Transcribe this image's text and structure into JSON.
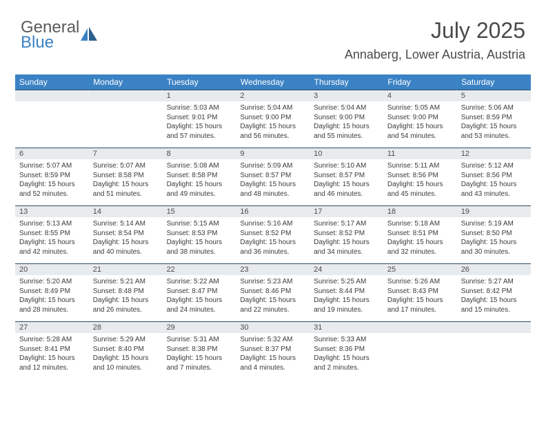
{
  "logo": {
    "part1": "General",
    "part2": "Blue"
  },
  "header": {
    "monthTitle": "July 2025",
    "location": "Annaberg, Lower Austria, Austria"
  },
  "dayNames": [
    "Sunday",
    "Monday",
    "Tuesday",
    "Wednesday",
    "Thursday",
    "Friday",
    "Saturday"
  ],
  "colors": {
    "headerBg": "#3b82c4",
    "headerText": "#ffffff",
    "dayNumBg": "#e8ebed",
    "rowBorder": "#2d4a63",
    "bodyText": "#3a3a3a",
    "titleText": "#4a4a4a"
  },
  "weeks": [
    {
      "nums": [
        "",
        "",
        "1",
        "2",
        "3",
        "4",
        "5"
      ],
      "cells": [
        null,
        null,
        {
          "sr": "Sunrise: 5:03 AM",
          "ss": "Sunset: 9:01 PM",
          "dl1": "Daylight: 15 hours",
          "dl2": "and 57 minutes."
        },
        {
          "sr": "Sunrise: 5:04 AM",
          "ss": "Sunset: 9:00 PM",
          "dl1": "Daylight: 15 hours",
          "dl2": "and 56 minutes."
        },
        {
          "sr": "Sunrise: 5:04 AM",
          "ss": "Sunset: 9:00 PM",
          "dl1": "Daylight: 15 hours",
          "dl2": "and 55 minutes."
        },
        {
          "sr": "Sunrise: 5:05 AM",
          "ss": "Sunset: 9:00 PM",
          "dl1": "Daylight: 15 hours",
          "dl2": "and 54 minutes."
        },
        {
          "sr": "Sunrise: 5:06 AM",
          "ss": "Sunset: 8:59 PM",
          "dl1": "Daylight: 15 hours",
          "dl2": "and 53 minutes."
        }
      ]
    },
    {
      "nums": [
        "6",
        "7",
        "8",
        "9",
        "10",
        "11",
        "12"
      ],
      "cells": [
        {
          "sr": "Sunrise: 5:07 AM",
          "ss": "Sunset: 8:59 PM",
          "dl1": "Daylight: 15 hours",
          "dl2": "and 52 minutes."
        },
        {
          "sr": "Sunrise: 5:07 AM",
          "ss": "Sunset: 8:58 PM",
          "dl1": "Daylight: 15 hours",
          "dl2": "and 51 minutes."
        },
        {
          "sr": "Sunrise: 5:08 AM",
          "ss": "Sunset: 8:58 PM",
          "dl1": "Daylight: 15 hours",
          "dl2": "and 49 minutes."
        },
        {
          "sr": "Sunrise: 5:09 AM",
          "ss": "Sunset: 8:57 PM",
          "dl1": "Daylight: 15 hours",
          "dl2": "and 48 minutes."
        },
        {
          "sr": "Sunrise: 5:10 AM",
          "ss": "Sunset: 8:57 PM",
          "dl1": "Daylight: 15 hours",
          "dl2": "and 46 minutes."
        },
        {
          "sr": "Sunrise: 5:11 AM",
          "ss": "Sunset: 8:56 PM",
          "dl1": "Daylight: 15 hours",
          "dl2": "and 45 minutes."
        },
        {
          "sr": "Sunrise: 5:12 AM",
          "ss": "Sunset: 8:56 PM",
          "dl1": "Daylight: 15 hours",
          "dl2": "and 43 minutes."
        }
      ]
    },
    {
      "nums": [
        "13",
        "14",
        "15",
        "16",
        "17",
        "18",
        "19"
      ],
      "cells": [
        {
          "sr": "Sunrise: 5:13 AM",
          "ss": "Sunset: 8:55 PM",
          "dl1": "Daylight: 15 hours",
          "dl2": "and 42 minutes."
        },
        {
          "sr": "Sunrise: 5:14 AM",
          "ss": "Sunset: 8:54 PM",
          "dl1": "Daylight: 15 hours",
          "dl2": "and 40 minutes."
        },
        {
          "sr": "Sunrise: 5:15 AM",
          "ss": "Sunset: 8:53 PM",
          "dl1": "Daylight: 15 hours",
          "dl2": "and 38 minutes."
        },
        {
          "sr": "Sunrise: 5:16 AM",
          "ss": "Sunset: 8:52 PM",
          "dl1": "Daylight: 15 hours",
          "dl2": "and 36 minutes."
        },
        {
          "sr": "Sunrise: 5:17 AM",
          "ss": "Sunset: 8:52 PM",
          "dl1": "Daylight: 15 hours",
          "dl2": "and 34 minutes."
        },
        {
          "sr": "Sunrise: 5:18 AM",
          "ss": "Sunset: 8:51 PM",
          "dl1": "Daylight: 15 hours",
          "dl2": "and 32 minutes."
        },
        {
          "sr": "Sunrise: 5:19 AM",
          "ss": "Sunset: 8:50 PM",
          "dl1": "Daylight: 15 hours",
          "dl2": "and 30 minutes."
        }
      ]
    },
    {
      "nums": [
        "20",
        "21",
        "22",
        "23",
        "24",
        "25",
        "26"
      ],
      "cells": [
        {
          "sr": "Sunrise: 5:20 AM",
          "ss": "Sunset: 8:49 PM",
          "dl1": "Daylight: 15 hours",
          "dl2": "and 28 minutes."
        },
        {
          "sr": "Sunrise: 5:21 AM",
          "ss": "Sunset: 8:48 PM",
          "dl1": "Daylight: 15 hours",
          "dl2": "and 26 minutes."
        },
        {
          "sr": "Sunrise: 5:22 AM",
          "ss": "Sunset: 8:47 PM",
          "dl1": "Daylight: 15 hours",
          "dl2": "and 24 minutes."
        },
        {
          "sr": "Sunrise: 5:23 AM",
          "ss": "Sunset: 8:46 PM",
          "dl1": "Daylight: 15 hours",
          "dl2": "and 22 minutes."
        },
        {
          "sr": "Sunrise: 5:25 AM",
          "ss": "Sunset: 8:44 PM",
          "dl1": "Daylight: 15 hours",
          "dl2": "and 19 minutes."
        },
        {
          "sr": "Sunrise: 5:26 AM",
          "ss": "Sunset: 8:43 PM",
          "dl1": "Daylight: 15 hours",
          "dl2": "and 17 minutes."
        },
        {
          "sr": "Sunrise: 5:27 AM",
          "ss": "Sunset: 8:42 PM",
          "dl1": "Daylight: 15 hours",
          "dl2": "and 15 minutes."
        }
      ]
    },
    {
      "nums": [
        "27",
        "28",
        "29",
        "30",
        "31",
        "",
        ""
      ],
      "cells": [
        {
          "sr": "Sunrise: 5:28 AM",
          "ss": "Sunset: 8:41 PM",
          "dl1": "Daylight: 15 hours",
          "dl2": "and 12 minutes."
        },
        {
          "sr": "Sunrise: 5:29 AM",
          "ss": "Sunset: 8:40 PM",
          "dl1": "Daylight: 15 hours",
          "dl2": "and 10 minutes."
        },
        {
          "sr": "Sunrise: 5:31 AM",
          "ss": "Sunset: 8:38 PM",
          "dl1": "Daylight: 15 hours",
          "dl2": "and 7 minutes."
        },
        {
          "sr": "Sunrise: 5:32 AM",
          "ss": "Sunset: 8:37 PM",
          "dl1": "Daylight: 15 hours",
          "dl2": "and 4 minutes."
        },
        {
          "sr": "Sunrise: 5:33 AM",
          "ss": "Sunset: 8:36 PM",
          "dl1": "Daylight: 15 hours",
          "dl2": "and 2 minutes."
        },
        null,
        null
      ]
    }
  ]
}
